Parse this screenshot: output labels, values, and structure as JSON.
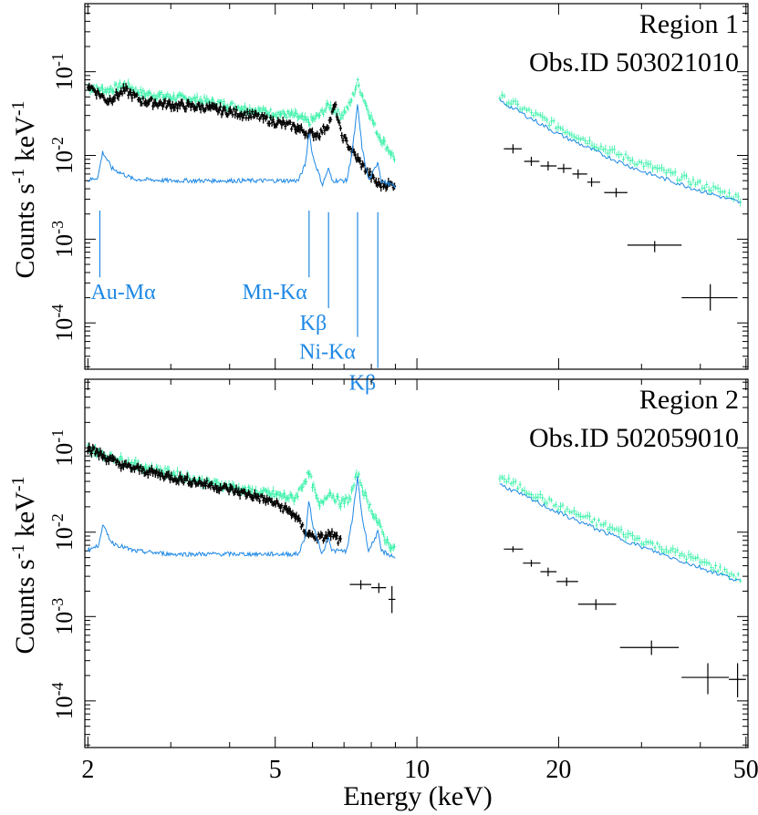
{
  "figure": {
    "xlabel": "Energy (keV)",
    "ylabel_base": "Counts s",
    "ylabel_exp1": "-1",
    "ylabel_mid": " keV",
    "ylabel_exp2": "-1",
    "tick_base": "10"
  },
  "colors": {
    "black": "#000000",
    "green": "#38f2a8",
    "blue": "#1e88e5"
  },
  "chart_data": [
    {
      "type": "scatter",
      "xscale": "log",
      "yscale": "log",
      "xlim": [
        1.97,
        50.5
      ],
      "ylim": [
        2.8e-05,
        0.65
      ],
      "xticks": [
        {
          "v": 2,
          "label": "2"
        },
        {
          "v": 5,
          "label": "5"
        },
        {
          "v": 10,
          "label": "10"
        },
        {
          "v": 20,
          "label": "20"
        },
        {
          "v": 50,
          "label": "50"
        }
      ],
      "yticks": [
        {
          "v": 0.1,
          "exp": "-1"
        },
        {
          "v": 0.01,
          "exp": "-2"
        },
        {
          "v": 0.001,
          "exp": "-3"
        },
        {
          "v": 0.0001,
          "exp": "-4"
        }
      ],
      "annotation_lines": [
        "Region 1",
        "Obs.ID 503021010"
      ],
      "legend_position": "top-right",
      "emission_lines": [
        {
          "label": "Au-M",
          "greek": "α",
          "energy": 2.12,
          "y_top": 0.0022,
          "y_bottom": 0.00035
        },
        {
          "label": "Mn-K",
          "greek": "α",
          "energy": 5.9,
          "y_top": 0.0022,
          "y_bottom": 0.00035
        },
        {
          "label": "K",
          "greek": "β",
          "energy": 6.49,
          "y_top": 0.0021,
          "y_bottom": 0.00015
        },
        {
          "label": "Ni-K",
          "greek": "α",
          "energy": 7.48,
          "y_top": 0.0021,
          "y_bottom": 6.8e-05
        },
        {
          "label": "K",
          "greek": "β",
          "energy": 8.26,
          "y_top": 0.0021,
          "y_bottom": 2.9e-05
        }
      ],
      "series": [
        {
          "color": "green",
          "soft": [
            [
              2.0,
              0.065
            ],
            [
              2.2,
              0.06
            ],
            [
              2.4,
              0.07
            ],
            [
              2.6,
              0.055
            ],
            [
              3.0,
              0.05
            ],
            [
              3.5,
              0.045
            ],
            [
              4.0,
              0.04
            ],
            [
              4.5,
              0.035
            ],
            [
              5.0,
              0.032
            ],
            [
              5.5,
              0.03
            ],
            [
              5.9,
              0.025
            ],
            [
              6.2,
              0.03
            ],
            [
              6.5,
              0.04
            ],
            [
              6.9,
              0.03
            ],
            [
              7.2,
              0.04
            ],
            [
              7.48,
              0.075
            ],
            [
              7.8,
              0.04
            ],
            [
              8.26,
              0.018
            ],
            [
              8.6,
              0.013
            ],
            [
              9.0,
              0.009
            ]
          ],
          "hard": [
            [
              15.0,
              0.05
            ],
            [
              20.0,
              0.022
            ],
            [
              25.0,
              0.012
            ],
            [
              30.0,
              0.008
            ],
            [
              40.0,
              0.0045
            ],
            [
              49.0,
              0.003
            ]
          ]
        },
        {
          "color": "black",
          "soft": [
            [
              2.0,
              0.07
            ],
            [
              2.2,
              0.045
            ],
            [
              2.4,
              0.06
            ],
            [
              2.6,
              0.045
            ],
            [
              3.0,
              0.04
            ],
            [
              3.5,
              0.038
            ],
            [
              4.0,
              0.033
            ],
            [
              4.5,
              0.03
            ],
            [
              5.0,
              0.025
            ],
            [
              5.5,
              0.022
            ],
            [
              5.9,
              0.018
            ],
            [
              6.2,
              0.018
            ],
            [
              6.5,
              0.024
            ],
            [
              6.7,
              0.04
            ],
            [
              6.9,
              0.018
            ],
            [
              7.48,
              0.009
            ],
            [
              8.26,
              0.0045
            ],
            [
              9.0,
              0.0045
            ]
          ],
          "hard_bins": [
            {
              "x": 16.0,
              "lo": 15.3,
              "hi": 16.7,
              "y": 0.012
            },
            {
              "x": 17.5,
              "lo": 16.9,
              "hi": 18.2,
              "y": 0.0085
            },
            {
              "x": 19.0,
              "lo": 18.3,
              "hi": 19.8,
              "y": 0.0075
            },
            {
              "x": 20.5,
              "lo": 19.9,
              "hi": 21.3,
              "y": 0.007
            },
            {
              "x": 22.0,
              "lo": 21.4,
              "hi": 23.0,
              "y": 0.006
            },
            {
              "x": 23.5,
              "lo": 23.0,
              "hi": 24.5,
              "y": 0.0048
            },
            {
              "x": 26.5,
              "lo": 25.0,
              "hi": 28.0,
              "y": 0.0036
            },
            {
              "x": 32.0,
              "lo": 28.0,
              "hi": 36.5,
              "y": 0.00085,
              "elo": 0.0007,
              "ehi": 0.00095
            },
            {
              "x": 42.0,
              "lo": 36.5,
              "hi": 48.0,
              "y": 0.0002,
              "elo": 0.00014,
              "ehi": 0.00029
            }
          ]
        },
        {
          "color": "blue",
          "soft": [
            [
              2.0,
              0.005
            ],
            [
              2.1,
              0.0055
            ],
            [
              2.15,
              0.011
            ],
            [
              2.25,
              0.007
            ],
            [
              2.5,
              0.0052
            ],
            [
              3.0,
              0.005
            ],
            [
              4.0,
              0.005
            ],
            [
              5.0,
              0.005
            ],
            [
              5.6,
              0.005
            ],
            [
              5.8,
              0.008
            ],
            [
              5.9,
              0.02
            ],
            [
              6.0,
              0.01
            ],
            [
              6.3,
              0.0045
            ],
            [
              6.49,
              0.007
            ],
            [
              6.6,
              0.005
            ],
            [
              7.1,
              0.005
            ],
            [
              7.3,
              0.012
            ],
            [
              7.48,
              0.04
            ],
            [
              7.65,
              0.012
            ],
            [
              7.9,
              0.005
            ],
            [
              8.1,
              0.0065
            ],
            [
              8.26,
              0.0085
            ],
            [
              8.4,
              0.005
            ],
            [
              9.0,
              0.0042
            ]
          ],
          "hard": [
            [
              15.0,
              0.045
            ],
            [
              20.0,
              0.018
            ],
            [
              25.0,
              0.01
            ],
            [
              30.0,
              0.0065
            ],
            [
              40.0,
              0.0038
            ],
            [
              49.0,
              0.0027
            ]
          ]
        }
      ]
    },
    {
      "type": "scatter",
      "xscale": "log",
      "yscale": "log",
      "xlim": [
        1.97,
        50.5
      ],
      "ylim": [
        2.8e-05,
        0.65
      ],
      "xticks": [
        {
          "v": 2,
          "label": "2"
        },
        {
          "v": 5,
          "label": "5"
        },
        {
          "v": 10,
          "label": "10"
        },
        {
          "v": 20,
          "label": "20"
        },
        {
          "v": 50,
          "label": "50"
        }
      ],
      "yticks": [
        {
          "v": 0.1,
          "exp": "-1"
        },
        {
          "v": 0.01,
          "exp": "-2"
        },
        {
          "v": 0.001,
          "exp": "-3"
        },
        {
          "v": 0.0001,
          "exp": "-4"
        }
      ],
      "annotation_lines": [
        "Region 2",
        "Obs.ID 502059010"
      ],
      "legend_position": "top-right",
      "emission_lines": [],
      "series": [
        {
          "color": "green",
          "soft": [
            [
              2.0,
              0.1
            ],
            [
              2.2,
              0.08
            ],
            [
              2.4,
              0.07
            ],
            [
              2.6,
              0.06
            ],
            [
              3.0,
              0.05
            ],
            [
              3.5,
              0.04
            ],
            [
              4.0,
              0.035
            ],
            [
              4.5,
              0.03
            ],
            [
              5.0,
              0.028
            ],
            [
              5.5,
              0.025
            ],
            [
              5.9,
              0.05
            ],
            [
              6.2,
              0.02
            ],
            [
              6.5,
              0.03
            ],
            [
              6.9,
              0.022
            ],
            [
              7.2,
              0.025
            ],
            [
              7.48,
              0.05
            ],
            [
              7.8,
              0.025
            ],
            [
              8.26,
              0.013
            ],
            [
              8.6,
              0.008
            ],
            [
              9.0,
              0.006
            ]
          ],
          "hard": [
            [
              15.0,
              0.045
            ],
            [
              20.0,
              0.02
            ],
            [
              25.0,
              0.012
            ],
            [
              30.0,
              0.008
            ],
            [
              40.0,
              0.0045
            ],
            [
              49.0,
              0.0028
            ]
          ]
        },
        {
          "color": "black",
          "soft": [
            [
              2.0,
              0.1
            ],
            [
              2.2,
              0.075
            ],
            [
              2.4,
              0.06
            ],
            [
              2.6,
              0.055
            ],
            [
              3.0,
              0.045
            ],
            [
              3.5,
              0.038
            ],
            [
              4.0,
              0.032
            ],
            [
              4.5,
              0.027
            ],
            [
              5.0,
              0.022
            ],
            [
              5.5,
              0.016
            ],
            [
              5.8,
              0.01
            ],
            [
              6.0,
              0.009
            ],
            [
              6.3,
              0.0085
            ],
            [
              6.6,
              0.0095
            ],
            [
              6.9,
              0.0075
            ]
          ],
          "hard_bins": [
            {
              "x": 7.6,
              "lo": 7.2,
              "hi": 8.0,
              "y": 0.0024,
              "elo": 0.0021,
              "ehi": 0.0027
            },
            {
              "x": 8.3,
              "lo": 8.0,
              "hi": 8.6,
              "y": 0.0022,
              "elo": 0.0019,
              "ehi": 0.0025
            },
            {
              "x": 8.85,
              "lo": 8.7,
              "hi": 9.0,
              "y": 0.0016,
              "elo": 0.0011,
              "ehi": 0.0023
            },
            {
              "x": 16.0,
              "lo": 15.3,
              "hi": 16.8,
              "y": 0.0063,
              "elo": 0.0058,
              "ehi": 0.0068
            },
            {
              "x": 17.5,
              "lo": 16.8,
              "hi": 18.3,
              "y": 0.0043,
              "elo": 0.0039,
              "ehi": 0.0047
            },
            {
              "x": 19.0,
              "lo": 18.3,
              "hi": 19.8,
              "y": 0.0034,
              "elo": 0.003,
              "ehi": 0.0038
            },
            {
              "x": 20.8,
              "lo": 19.8,
              "hi": 22.0,
              "y": 0.0026,
              "elo": 0.0023,
              "ehi": 0.0029
            },
            {
              "x": 24.0,
              "lo": 22.0,
              "hi": 26.5,
              "y": 0.0014,
              "elo": 0.0012,
              "ehi": 0.0016
            },
            {
              "x": 31.5,
              "lo": 27.0,
              "hi": 36.0,
              "y": 0.00043,
              "elo": 0.00035,
              "ehi": 0.00052
            },
            {
              "x": 41.5,
              "lo": 36.5,
              "hi": 46.0,
              "y": 0.00019,
              "elo": 0.00012,
              "ehi": 0.00028
            },
            {
              "x": 48.0,
              "lo": 46.0,
              "hi": 50.0,
              "y": 0.00018,
              "elo": 0.00011,
              "ehi": 0.00028
            }
          ]
        },
        {
          "color": "blue",
          "soft": [
            [
              2.0,
              0.0062
            ],
            [
              2.1,
              0.0068
            ],
            [
              2.15,
              0.012
            ],
            [
              2.25,
              0.0075
            ],
            [
              2.5,
              0.006
            ],
            [
              3.0,
              0.0055
            ],
            [
              4.0,
              0.0055
            ],
            [
              5.0,
              0.0055
            ],
            [
              5.6,
              0.0055
            ],
            [
              5.8,
              0.009
            ],
            [
              5.9,
              0.025
            ],
            [
              6.0,
              0.012
            ],
            [
              6.3,
              0.0055
            ],
            [
              6.49,
              0.009
            ],
            [
              6.6,
              0.006
            ],
            [
              7.1,
              0.006
            ],
            [
              7.3,
              0.015
            ],
            [
              7.48,
              0.045
            ],
            [
              7.65,
              0.015
            ],
            [
              7.9,
              0.006
            ],
            [
              8.1,
              0.008
            ],
            [
              8.26,
              0.01
            ],
            [
              8.4,
              0.006
            ],
            [
              9.0,
              0.005
            ]
          ],
          "hard": [
            [
              15.0,
              0.037
            ],
            [
              20.0,
              0.017
            ],
            [
              25.0,
              0.01
            ],
            [
              30.0,
              0.0067
            ],
            [
              40.0,
              0.0038
            ],
            [
              49.0,
              0.0026
            ]
          ]
        }
      ]
    }
  ]
}
